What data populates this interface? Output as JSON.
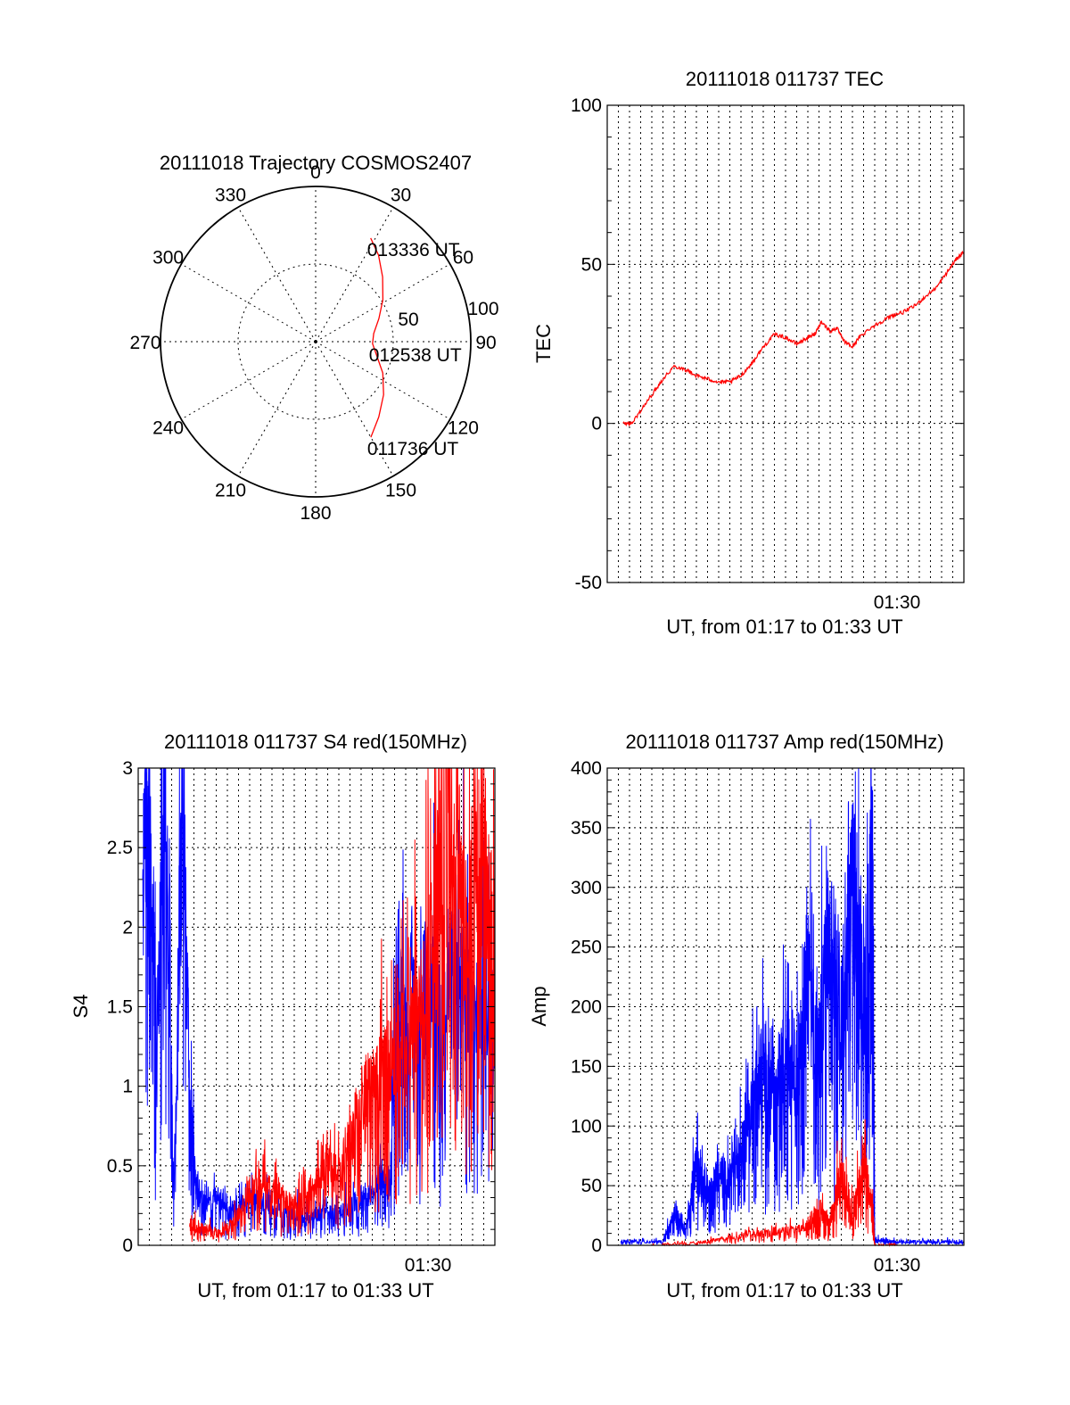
{
  "colors": {
    "red_series": "#ff0000",
    "blue_series": "#0000ff",
    "axes": "#000000",
    "background": "#ffffff"
  },
  "chart_data": [
    {
      "type": "polar",
      "title": "20111018 Trajectory COSMOS2407",
      "azimuth_labels": [
        "0",
        "30",
        "60",
        "90",
        "120",
        "150",
        "180",
        "210",
        "240",
        "270",
        "300",
        "330"
      ],
      "radial_labels": [
        "50",
        "100"
      ],
      "trajectory": {
        "color": "#ff0000",
        "azimuth_deg": [
          150,
          140,
          128,
          115,
          102,
          92,
          82,
          70,
          58,
          46,
          36,
          28
        ],
        "elevation_deg": [
          26,
          33,
          40,
          47,
          54,
          57,
          56,
          51,
          44,
          36,
          28,
          22
        ]
      },
      "annotations": [
        {
          "text": "011736 UT",
          "azimuth_deg": 150,
          "elevation_deg": 26
        },
        {
          "text": "012538 UT",
          "azimuth_deg": 92,
          "elevation_deg": 57
        },
        {
          "text": "013336 UT",
          "azimuth_deg": 28,
          "elevation_deg": 22
        }
      ]
    },
    {
      "type": "line",
      "title": "20111018 011737 TEC",
      "ylabel": "TEC",
      "xlabel": "UT, from 01:17 to 01:33 UT",
      "xlim_min": [
        1.0,
        17.0
      ],
      "ylim": [
        -50,
        100
      ],
      "yticks": [
        "100",
        "50",
        "0",
        "-50"
      ],
      "xtick_labels": [
        {
          "x_min": 14.0,
          "label": "01:30"
        }
      ],
      "grid": true,
      "series": [
        {
          "color": "#ff0000",
          "x_min": [
            1.7,
            2.1,
            2.5,
            3.0,
            3.5,
            4.0,
            4.5,
            5.0,
            5.5,
            6.0,
            6.5,
            7.0,
            7.5,
            8.0,
            8.5,
            9.0,
            9.5,
            10.0,
            10.3,
            10.6,
            11.0,
            11.3,
            11.6,
            12.0,
            12.3,
            12.8,
            13.3,
            13.8,
            14.3,
            14.8,
            15.3,
            15.8,
            16.3,
            16.7,
            17.0
          ],
          "y": [
            0,
            0,
            4,
            9,
            14,
            18,
            17,
            15,
            14,
            13,
            13,
            15,
            19,
            24,
            28,
            27,
            25,
            27,
            28,
            32,
            29,
            30,
            26,
            24,
            27,
            30,
            32,
            34,
            35,
            37,
            40,
            43,
            48,
            52,
            54
          ]
        }
      ]
    },
    {
      "type": "line",
      "title": "20111018 011737 S4 red(150MHz)",
      "ylabel": "S4",
      "xlabel": "UT, from 01:17 to 01:33 UT",
      "xlim_min": [
        1.0,
        17.0
      ],
      "ylim": [
        0,
        3
      ],
      "yticks": [
        "3",
        "2.5",
        "2",
        "1.5",
        "1",
        "0.5",
        "0"
      ],
      "xtick_labels": [
        {
          "x_min": 14.0,
          "label": "01:30"
        }
      ],
      "grid": true,
      "series": [
        {
          "color": "#0000ff",
          "x_min": [
            1.2,
            1.5,
            1.8,
            2.2,
            2.6,
            3.0,
            3.3,
            3.6,
            4.0,
            4.5,
            5.0,
            5.5,
            6.0,
            6.5,
            7.0,
            7.5,
            8.0,
            8.5,
            9.0,
            9.5,
            10.0,
            10.5,
            11.0,
            11.3,
            11.7,
            12.0,
            12.3,
            12.6,
            13.0,
            13.5,
            14.0,
            14.5,
            15.0,
            15.5,
            16.0,
            16.5,
            17.0
          ],
          "y": [
            2.2,
            2.8,
            1.3,
            2.9,
            0.3,
            2.8,
            1.0,
            0.35,
            0.25,
            0.3,
            0.2,
            0.25,
            0.3,
            0.28,
            0.25,
            0.22,
            0.2,
            0.18,
            0.2,
            0.22,
            0.2,
            0.25,
            0.28,
            0.3,
            0.35,
            0.38,
            0.4,
            1.6,
            1.4,
            1.5,
            1.7,
            1.3,
            1.5,
            1.8,
            1.4,
            1.6,
            1.3
          ]
        },
        {
          "color": "#ff0000",
          "x_min": [
            3.3,
            3.6,
            4.0,
            4.5,
            5.0,
            5.5,
            6.0,
            6.5,
            7.0,
            7.5,
            8.0,
            8.5,
            9.0,
            9.5,
            10.0,
            10.5,
            11.0,
            11.5,
            12.0,
            12.3,
            12.8,
            13.3,
            13.8,
            14.3,
            14.8,
            15.3,
            15.8,
            16.2,
            16.6,
            17.0
          ],
          "y": [
            0.15,
            0.12,
            0.1,
            0.08,
            0.1,
            0.2,
            0.35,
            0.4,
            0.35,
            0.3,
            0.25,
            0.3,
            0.4,
            0.5,
            0.45,
            0.7,
            0.9,
            1.0,
            1.1,
            1.2,
            1.3,
            1.4,
            1.5,
            2.2,
            2.8,
            2.5,
            1.8,
            2.6,
            2.2,
            1.9
          ]
        }
      ]
    },
    {
      "type": "line",
      "title": "20111018 011737 Amp red(150MHz)",
      "ylabel": "Amp",
      "xlabel": "UT, from 01:17 to 01:33 UT",
      "xlim_min": [
        1.0,
        17.0
      ],
      "ylim": [
        0,
        400
      ],
      "yticks": [
        "400",
        "350",
        "300",
        "250",
        "200",
        "150",
        "100",
        "50",
        "0"
      ],
      "xtick_labels": [
        {
          "x_min": 14.0,
          "label": "01:30"
        }
      ],
      "grid": true,
      "series": [
        {
          "color": "#0000ff",
          "x_min": [
            1.6,
            2.5,
            3.5,
            4.0,
            4.5,
            5.0,
            5.5,
            6.0,
            6.5,
            7.0,
            7.5,
            8.0,
            8.5,
            9.0,
            9.5,
            10.0,
            10.5,
            11.0,
            11.5,
            12.0,
            12.5,
            12.9,
            13.0,
            13.5,
            14.0,
            15.0,
            16.0,
            17.0
          ],
          "y": [
            3,
            3,
            3,
            30,
            10,
            70,
            40,
            60,
            50,
            80,
            110,
            150,
            130,
            160,
            150,
            220,
            160,
            270,
            190,
            300,
            200,
            310,
            5,
            4,
            3,
            3,
            3,
            3
          ]
        },
        {
          "color": "#ff0000",
          "x_min": [
            3.0,
            5.0,
            6.0,
            7.0,
            8.0,
            9.0,
            10.0,
            10.5,
            11.0,
            11.5,
            12.0,
            12.5,
            12.9,
            13.0,
            14.0
          ],
          "y": [
            0,
            2,
            5,
            8,
            10,
            12,
            15,
            30,
            20,
            60,
            25,
            70,
            30,
            0,
            0
          ]
        }
      ]
    }
  ]
}
